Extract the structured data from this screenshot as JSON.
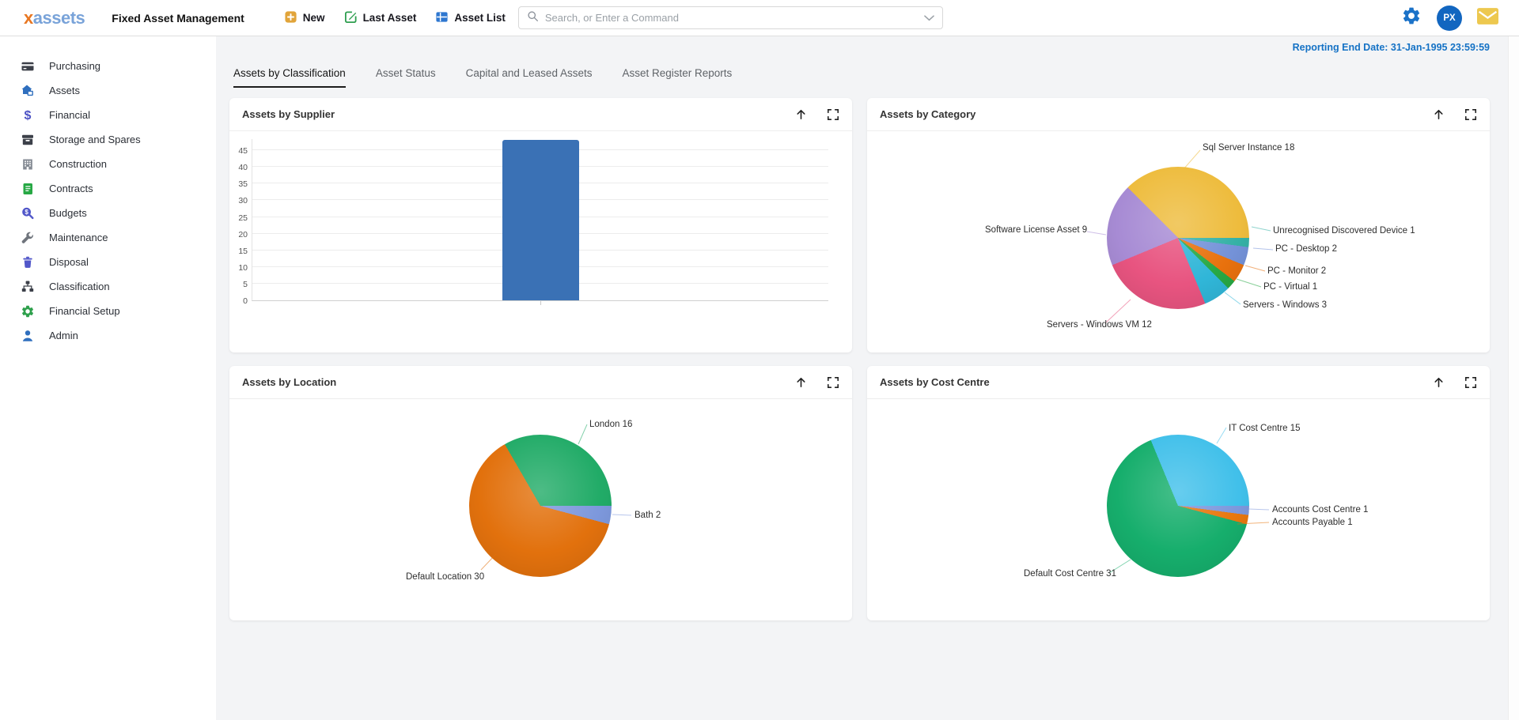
{
  "header": {
    "logo_x": "x",
    "logo_rest": "assets",
    "app_title": "Fixed Asset Management",
    "buttons": {
      "new": "New",
      "last_asset": "Last Asset",
      "asset_list": "Asset List"
    },
    "search_placeholder": "Search, or Enter a Command",
    "avatar_initials": "PX"
  },
  "reporting_end_date": "Reporting End Date: 31-Jan-1995 23:59:59",
  "sidebar": {
    "items": [
      {
        "label": "Purchasing"
      },
      {
        "label": "Assets"
      },
      {
        "label": "Financial"
      },
      {
        "label": "Storage and Spares"
      },
      {
        "label": "Construction"
      },
      {
        "label": "Contracts"
      },
      {
        "label": "Budgets"
      },
      {
        "label": "Maintenance"
      },
      {
        "label": "Disposal"
      },
      {
        "label": "Classification"
      },
      {
        "label": "Financial Setup"
      },
      {
        "label": "Admin"
      }
    ]
  },
  "tabs": [
    {
      "label": "Assets by Classification",
      "active": true
    },
    {
      "label": "Asset Status",
      "active": false
    },
    {
      "label": "Capital and Leased Assets",
      "active": false
    },
    {
      "label": "Asset Register Reports",
      "active": false
    }
  ],
  "chart_data": [
    {
      "id": "assets-by-supplier",
      "type": "bar",
      "title": "Assets by Supplier",
      "categories": [
        ""
      ],
      "values": [
        48
      ],
      "ylim": [
        0,
        48
      ],
      "yticks": [
        0,
        5,
        10,
        15,
        20,
        25,
        30,
        35,
        40,
        45
      ],
      "bar_color": "#3a71b5",
      "grid": true,
      "legend": "none"
    },
    {
      "id": "assets-by-category",
      "type": "pie",
      "title": "Assets by Category",
      "start_angle": 90,
      "slices": [
        {
          "label": "Unrecognised Discovered Device",
          "value": 1,
          "text": "Unrecognised Discovered Device 1",
          "color": "#35b1a6"
        },
        {
          "label": "PC - Desktop",
          "value": 2,
          "text": "PC - Desktop 2",
          "color": "#7492d8"
        },
        {
          "label": "PC - Monitor",
          "value": 2,
          "text": "PC - Monitor 2",
          "color": "#e8710d"
        },
        {
          "label": "PC - Virtual",
          "value": 1,
          "text": "PC - Virtual 1",
          "color": "#27a844"
        },
        {
          "label": "Servers - Windows",
          "value": 3,
          "text": "Servers - Windows 3",
          "color": "#30b6d8"
        },
        {
          "label": "Servers - Windows VM",
          "value": 12,
          "text": "Servers - Windows VM 12",
          "color": "#e85480"
        },
        {
          "label": "Software License Asset",
          "value": 9,
          "text": "Software License Asset 9",
          "color": "#a78bd4"
        },
        {
          "label": "Sql Server Instance",
          "value": 18,
          "text": "Sql Server Instance 18",
          "color": "#eebc3d"
        }
      ]
    },
    {
      "id": "assets-by-location",
      "type": "pie",
      "title": "Assets by Location",
      "start_angle": 90,
      "slices": [
        {
          "label": "Bath",
          "value": 2,
          "text": "Bath 2",
          "color": "#7d98dc"
        },
        {
          "label": "Default Location",
          "value": 30,
          "text": "Default Location 30",
          "color": "#e2710d"
        },
        {
          "label": "London",
          "value": 16,
          "text": "London 16",
          "color": "#21ab67"
        }
      ]
    },
    {
      "id": "assets-by-cost-centre",
      "type": "pie",
      "title": "Assets by Cost Centre",
      "start_angle": 90,
      "slices": [
        {
          "label": "Accounts Cost Centre",
          "value": 1,
          "text": "Accounts Cost Centre 1",
          "color": "#7d98dc"
        },
        {
          "label": "Accounts Payable",
          "value": 1,
          "text": "Accounts Payable 1",
          "color": "#e8770e"
        },
        {
          "label": "Default Cost Centre",
          "value": 31,
          "text": "Default Cost Centre 31",
          "color": "#16ae6c"
        },
        {
          "label": "IT Cost Centre",
          "value": 15,
          "text": "IT Cost Centre 15",
          "color": "#41c0ea"
        }
      ]
    }
  ]
}
